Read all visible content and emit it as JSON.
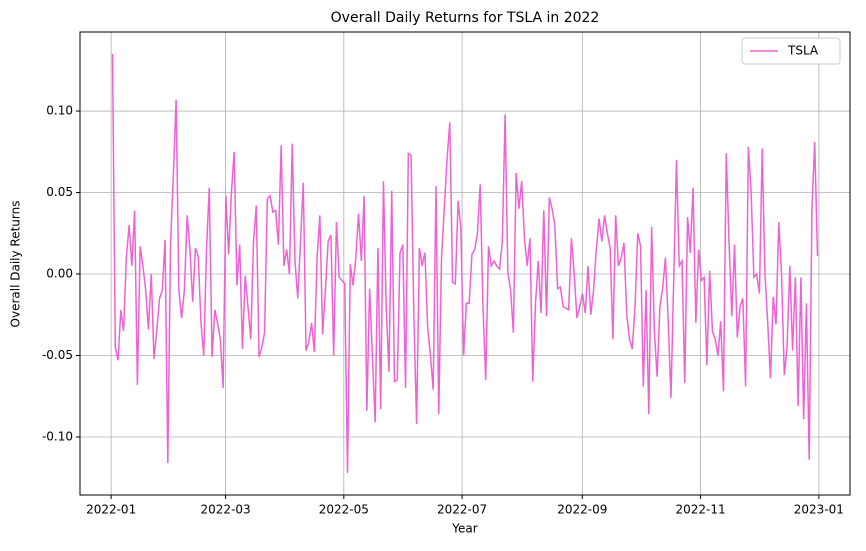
{
  "chart_data": {
    "type": "line",
    "title": "Overall Daily Returns for TSLA in 2022",
    "xlabel": "Year",
    "ylabel": "Overall Daily Returns",
    "xticks": [
      "2022-01",
      "2022-03",
      "2022-05",
      "2022-07",
      "2022-09",
      "2022-11",
      "2023-01"
    ],
    "ylim": [
      -0.1356,
      0.1485
    ],
    "yticks": [
      {
        "value": -0.1,
        "label": "-0.10"
      },
      -0.05,
      {
        "value": 0,
        "label": "0.00"
      },
      0.05,
      {
        "value": 0.1,
        "label": "0.10"
      }
    ],
    "grid": true,
    "legend": "upper right",
    "series": [
      {
        "name": "TSLA",
        "color": "#ee62d4",
        "values": [
          0.135,
          -0.045,
          -0.053,
          -0.022,
          -0.035,
          0.01,
          0.03,
          0.005,
          0.039,
          -0.068,
          0.017,
          0.005,
          -0.01,
          -0.034,
          0.0,
          -0.052,
          -0.035,
          -0.015,
          -0.01,
          0.021,
          -0.116,
          0.02,
          0.06,
          0.107,
          -0.01,
          -0.027,
          -0.01,
          0.036,
          0.015,
          -0.017,
          0.016,
          0.011,
          -0.03,
          -0.05,
          0.015,
          0.053,
          -0.051,
          -0.022,
          -0.03,
          -0.04,
          -0.07,
          0.048,
          0.012,
          0.05,
          0.075,
          -0.007,
          0.018,
          -0.046,
          -0.001,
          -0.02,
          -0.04,
          0.02,
          0.042,
          -0.051,
          -0.045,
          -0.036,
          0.046,
          0.048,
          0.038,
          0.039,
          0.018,
          0.079,
          0.005,
          0.015,
          0.0,
          0.08,
          0.008,
          -0.015,
          0.02,
          0.056,
          -0.047,
          -0.042,
          -0.03,
          -0.048,
          0.01,
          0.036,
          -0.037,
          -0.01,
          0.02,
          0.024,
          -0.05,
          0.032,
          -0.002,
          -0.004,
          -0.006,
          -0.122,
          0.006,
          -0.007,
          0.01,
          0.037,
          0.008,
          0.048,
          -0.084,
          -0.009,
          -0.05,
          -0.091,
          0.016,
          -0.083,
          0.057,
          -0.02,
          -0.06,
          0.051,
          -0.066,
          -0.065,
          0.013,
          0.018,
          -0.07,
          0.074,
          0.073,
          -0.025,
          -0.092,
          0.016,
          0.005,
          0.013,
          -0.033,
          -0.05,
          -0.071,
          0.054,
          -0.086,
          0.01,
          0.04,
          0.07,
          0.093,
          -0.005,
          -0.006,
          0.045,
          0.028,
          -0.05,
          -0.018,
          -0.018,
          0.012,
          0.015,
          0.025,
          0.055,
          -0.02,
          -0.065,
          0.017,
          0.005,
          0.008,
          0.005,
          0.003,
          0.02,
          0.098,
          0.001,
          -0.01,
          -0.036,
          0.062,
          0.04,
          0.057,
          0.022,
          0.005,
          0.022,
          -0.066,
          -0.018,
          0.008,
          -0.024,
          0.039,
          -0.026,
          0.047,
          0.04,
          0.03,
          -0.009,
          -0.008,
          -0.02,
          -0.021,
          -0.022,
          0.022,
          0.0,
          -0.027,
          -0.02,
          -0.012,
          -0.024,
          0.005,
          -0.025,
          -0.01,
          0.015,
          0.034,
          0.02,
          0.036,
          0.025,
          0.016,
          -0.04,
          0.036,
          0.005,
          0.01,
          0.019,
          -0.025,
          -0.04,
          -0.046,
          -0.02,
          0.025,
          0.017,
          -0.069,
          -0.01,
          -0.086,
          0.029,
          -0.035,
          -0.063,
          -0.02,
          -0.009,
          0.01,
          -0.028,
          -0.076,
          -0.003,
          0.07,
          0.005,
          0.008,
          -0.067,
          0.035,
          0.013,
          0.053,
          -0.03,
          0.015,
          -0.004,
          -0.002,
          -0.056,
          0.002,
          -0.035,
          -0.04,
          -0.05,
          -0.029,
          -0.072,
          0.074,
          0.02,
          -0.026,
          0.018,
          -0.039,
          -0.02,
          -0.015,
          -0.069,
          0.078,
          0.05,
          -0.002,
          0.0,
          -0.012,
          0.077,
          0.0,
          -0.03,
          -0.064,
          -0.014,
          -0.031,
          0.032,
          0.0,
          -0.062,
          -0.045,
          0.005,
          -0.047,
          -0.002,
          -0.081,
          -0.002,
          -0.089,
          -0.018,
          -0.114,
          0.04,
          0.081,
          0.011
        ]
      }
    ]
  }
}
